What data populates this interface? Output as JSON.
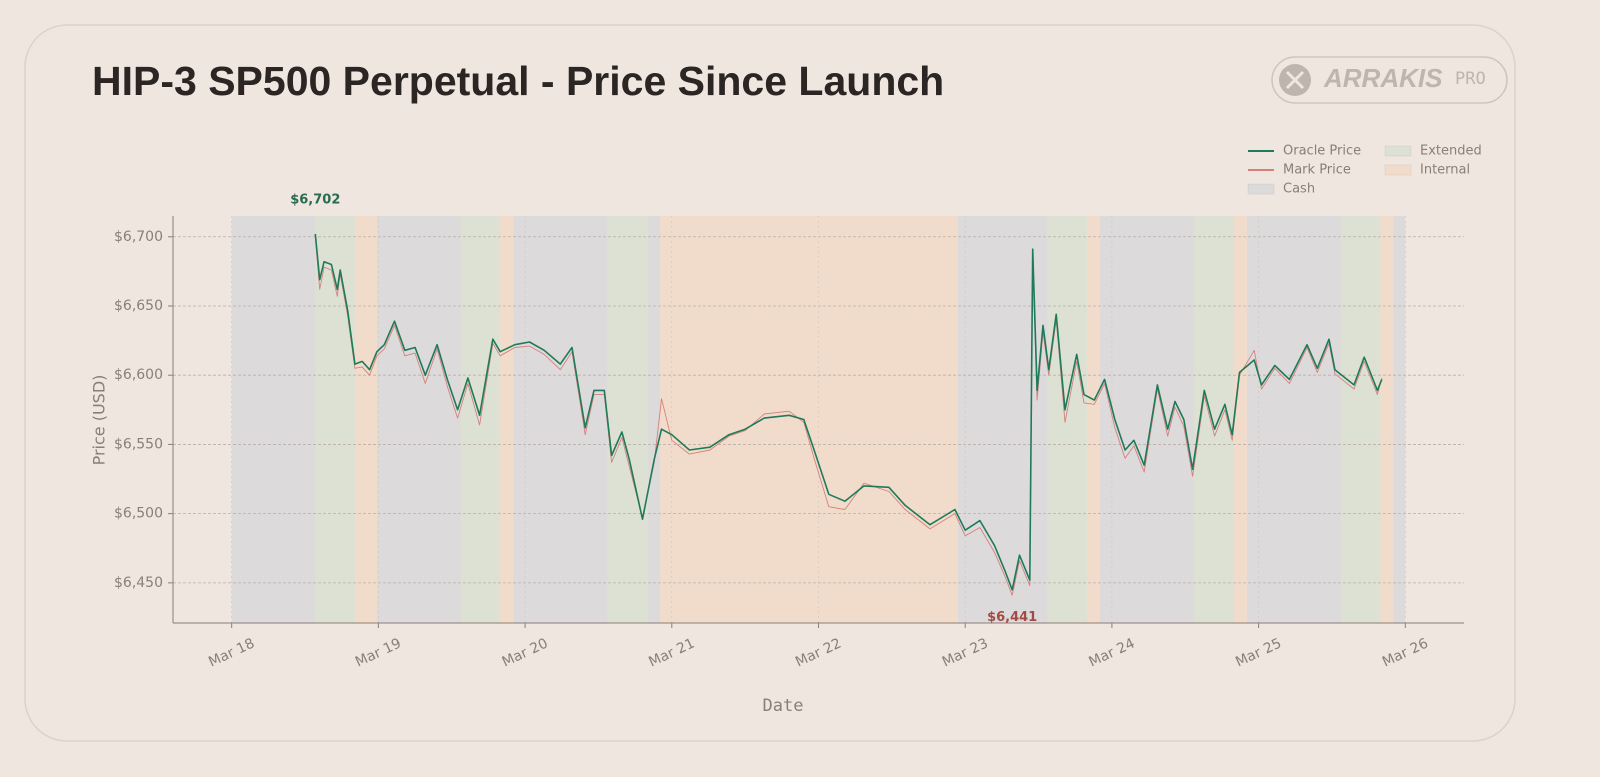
{
  "logo": {
    "name": "ARRAKIS",
    "tag": "PRO"
  },
  "chart_data": {
    "type": "line",
    "title": "HIP-3 SP500 Perpetual - Price Since Launch",
    "x_label": "Date",
    "y_label": "Price (USD)",
    "xlim": [
      17.6,
      26.4
    ],
    "xticks": [
      {
        "value": 18,
        "label": "Mar 18"
      },
      {
        "value": 19,
        "label": "Mar 19"
      },
      {
        "value": 20,
        "label": "Mar 20"
      },
      {
        "value": 21,
        "label": "Mar 21"
      },
      {
        "value": 22,
        "label": "Mar 22"
      },
      {
        "value": 23,
        "label": "Mar 23"
      },
      {
        "value": 24,
        "label": "Mar 24"
      },
      {
        "value": 25,
        "label": "Mar 25"
      },
      {
        "value": 26,
        "label": "Mar 26"
      }
    ],
    "ylim": [
      6421,
      6715
    ],
    "yticks": [
      {
        "value": 6450,
        "label": "$6,450"
      },
      {
        "value": 6500,
        "label": "$6,500"
      },
      {
        "value": 6550,
        "label": "$6,550"
      },
      {
        "value": 6600,
        "label": "$6,600"
      },
      {
        "value": 6650,
        "label": "$6,650"
      },
      {
        "value": 6700,
        "label": "$6,700"
      }
    ],
    "grid": true,
    "legend": "upper right",
    "x": [
      18.57,
      18.6,
      18.63,
      18.68,
      18.72,
      18.74,
      18.79,
      18.84,
      18.89,
      18.94,
      18.99,
      19.04,
      19.11,
      19.18,
      19.25,
      19.32,
      19.4,
      19.47,
      19.54,
      19.61,
      19.69,
      19.78,
      19.83,
      19.93,
      20.03,
      20.13,
      20.24,
      20.32,
      20.41,
      20.47,
      20.54,
      20.59,
      20.66,
      20.71,
      20.8,
      20.88,
      20.93,
      21.0,
      21.12,
      21.26,
      21.39,
      21.5,
      21.63,
      21.8,
      21.9,
      21.97,
      22.07,
      22.18,
      22.31,
      22.48,
      22.59,
      22.76,
      22.93,
      23.0,
      23.1,
      23.2,
      23.27,
      23.32,
      23.37,
      23.44,
      23.46,
      23.49,
      23.53,
      23.57,
      23.62,
      23.68,
      23.76,
      23.81,
      23.88,
      23.95,
      24.02,
      24.09,
      24.15,
      24.22,
      24.31,
      24.38,
      24.43,
      24.49,
      24.55,
      24.63,
      24.7,
      24.77,
      24.82,
      24.87,
      24.97,
      25.02,
      25.11,
      25.21,
      25.33,
      25.4,
      25.48,
      25.52,
      25.65,
      25.72,
      25.81,
      25.84
    ],
    "series": [
      {
        "name": "Oracle Price",
        "color": "#1f7a5a",
        "width": 1.6,
        "values": [
          6702,
          6669,
          6682,
          6680,
          6662,
          6676,
          6647,
          6608,
          6610,
          6604,
          6617,
          6622,
          6639,
          6618,
          6620,
          6600,
          6622,
          6597,
          6575,
          6598,
          6571,
          6626,
          6617,
          6622,
          6624,
          6618,
          6608,
          6620,
          6562,
          6589,
          6589,
          6542,
          6559,
          6539,
          6496,
          6539,
          6561,
          6557,
          6546,
          6548,
          6557,
          6561,
          6569,
          6571,
          6568,
          6546,
          6514,
          6509,
          6520,
          6519,
          6506,
          6492,
          6503,
          6488,
          6495,
          6477,
          6459,
          6445,
          6470,
          6452,
          6691,
          6589,
          6636,
          6604,
          6644,
          6575,
          6615,
          6586,
          6582,
          6597,
          6568,
          6546,
          6553,
          6535,
          6593,
          6561,
          6581,
          6568,
          6532,
          6589,
          6561,
          6579,
          6557,
          6602,
          6611,
          6593,
          6607,
          6597,
          6622,
          6605,
          6626,
          6604,
          6593,
          6613,
          6589,
          6597
        ]
      },
      {
        "name": "Mark Price",
        "color": "#d4817c",
        "width": 0.9,
        "values": [
          6700,
          6662,
          6678,
          6676,
          6657,
          6673,
          6643,
          6605,
          6606,
          6600,
          6614,
          6619,
          6636,
          6614,
          6616,
          6594,
          6619,
          6592,
          6569,
          6594,
          6564,
          6623,
          6614,
          6620,
          6621,
          6615,
          6604,
          6617,
          6557,
          6586,
          6586,
          6537,
          6555,
          6534,
          6497,
          6537,
          6583,
          6553,
          6543,
          6546,
          6556,
          6560,
          6572,
          6574,
          6566,
          6540,
          6505,
          6503,
          6522,
          6516,
          6503,
          6489,
          6500,
          6484,
          6490,
          6472,
          6455,
          6441,
          6466,
          6448,
          6685,
          6582,
          6631,
          6600,
          6640,
          6566,
          6610,
          6580,
          6579,
          6594,
          6562,
          6540,
          6549,
          6530,
          6590,
          6556,
          6577,
          6563,
          6527,
          6585,
          6556,
          6575,
          6553,
          6600,
          6618,
          6590,
          6605,
          6594,
          6620,
          6602,
          6623,
          6601,
          6590,
          6610,
          6586,
          6598
        ]
      }
    ],
    "sessions": [
      {
        "name": "Cash",
        "color": "rgba(200,205,215,0.45)",
        "ranges": [
          [
            18.0,
            18.57
          ],
          [
            18.99,
            19.56
          ],
          [
            19.92,
            20.56
          ],
          [
            20.84,
            20.92
          ],
          [
            22.95,
            23.56
          ],
          [
            23.92,
            24.56
          ],
          [
            24.92,
            25.56
          ],
          [
            25.92,
            26.0
          ]
        ]
      },
      {
        "name": "Extended",
        "color": "rgba(190,215,190,0.35)",
        "ranges": [
          [
            18.57,
            18.84
          ],
          [
            19.56,
            19.83
          ],
          [
            20.56,
            20.84
          ],
          [
            23.56,
            23.83
          ],
          [
            24.56,
            24.83
          ],
          [
            25.56,
            25.83
          ]
        ]
      },
      {
        "name": "Internal",
        "color": "rgba(245,200,170,0.35)",
        "ranges": [
          [
            18.84,
            18.99
          ],
          [
            19.83,
            19.92
          ],
          [
            20.92,
            22.95
          ],
          [
            23.83,
            23.92
          ],
          [
            24.83,
            24.92
          ],
          [
            25.83,
            25.92
          ]
        ]
      }
    ],
    "annotations": [
      {
        "text": "$6,702",
        "x": 18.57,
        "y": 6702,
        "color": "#2a6b4f",
        "position": "above"
      },
      {
        "text": "$6,441",
        "x": 23.32,
        "y": 6441,
        "color": "#a04c44",
        "position": "below"
      }
    ]
  }
}
